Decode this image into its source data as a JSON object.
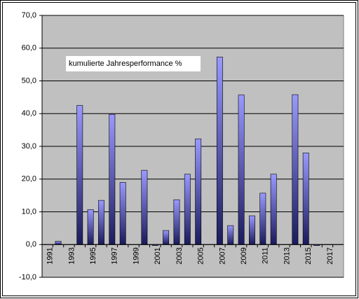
{
  "chart_data": {
    "type": "bar",
    "annotation": "kumulierte Jahresperformance %",
    "categories": [
      "1991",
      null,
      "1993",
      null,
      "1995",
      null,
      "1997",
      null,
      "1999",
      null,
      "2001",
      null,
      "2003",
      null,
      "2005",
      null,
      "2007",
      null,
      "2009",
      null,
      "2011",
      null,
      "2013",
      null,
      "2015",
      null,
      "2017",
      null
    ],
    "values": [
      null,
      1.0,
      null,
      42.5,
      10.7,
      13.5,
      39.8,
      19.0,
      null,
      22.7,
      -0.3,
      4.3,
      13.7,
      21.5,
      32.3,
      null,
      57.3,
      5.8,
      45.7,
      8.8,
      15.7,
      21.5,
      null,
      45.8,
      28.0,
      -0.3,
      null,
      null
    ],
    "color": "#9999ff",
    "ylim": [
      -10,
      70
    ],
    "yticks": [
      {
        "value": -10,
        "label": "-10,0"
      },
      {
        "value": 0,
        "label": "0,0"
      },
      {
        "value": 10,
        "label": "10,0"
      },
      {
        "value": 20,
        "label": "20,0"
      },
      {
        "value": 30,
        "label": "30,0"
      },
      {
        "value": 40,
        "label": "40,0"
      },
      {
        "value": 50,
        "label": "50,0"
      },
      {
        "value": 60,
        "label": "60,0"
      },
      {
        "value": 70,
        "label": "70,0"
      }
    ],
    "grid": true
  }
}
